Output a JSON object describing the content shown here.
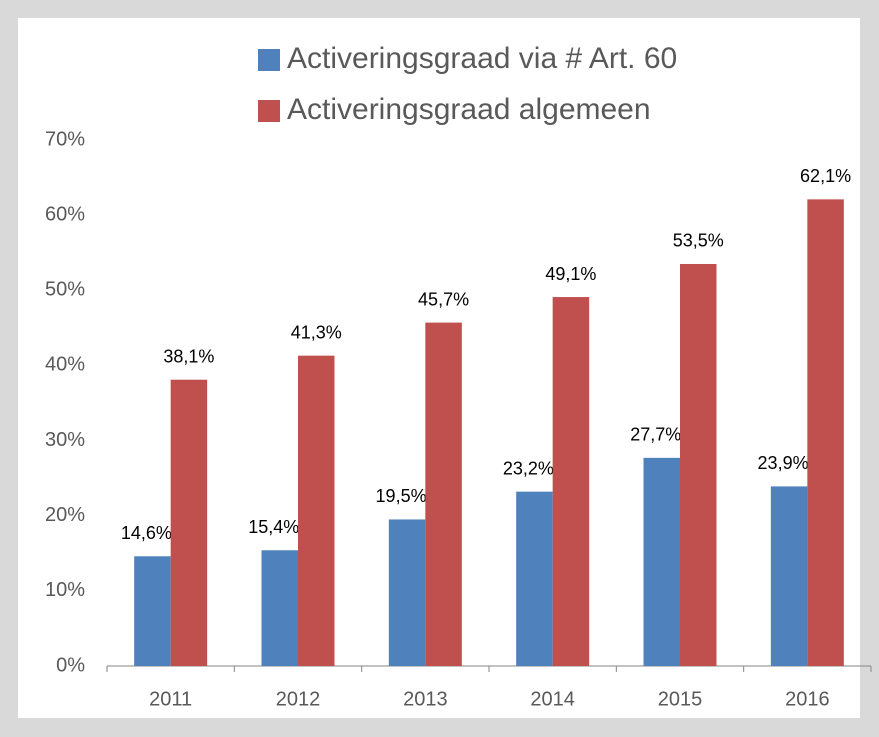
{
  "chart_data": {
    "type": "bar",
    "categories": [
      "2011",
      "2012",
      "2013",
      "2014",
      "2015",
      "2016"
    ],
    "series": [
      {
        "name": "Activeringsgraad via # Art. 60",
        "color": "#4f81bd",
        "values": [
          14.6,
          15.4,
          19.5,
          23.2,
          27.7,
          23.9
        ],
        "value_labels": [
          "14,6%",
          "15,4%",
          "19,5%",
          "23,2%",
          "27,7%",
          "23,9%"
        ]
      },
      {
        "name": "Activeringsgraad algemeen",
        "color": "#c0504d",
        "values": [
          38.1,
          41.3,
          45.7,
          49.1,
          53.5,
          62.1
        ],
        "value_labels": [
          "38,1%",
          "41,3%",
          "45,7%",
          "49,1%",
          "53,5%",
          "62,1%"
        ]
      }
    ],
    "ylim": [
      0,
      70
    ],
    "yticks": [
      {
        "value": 0,
        "label": "0%"
      },
      {
        "value": 10,
        "label": "10%"
      },
      {
        "value": 20,
        "label": "20%"
      },
      {
        "value": 30,
        "label": "30%"
      },
      {
        "value": 40,
        "label": "40%"
      },
      {
        "value": 50,
        "label": "50%"
      },
      {
        "value": 60,
        "label": "60%"
      },
      {
        "value": 70,
        "label": "70%"
      }
    ],
    "legend": "top",
    "grid": false
  }
}
